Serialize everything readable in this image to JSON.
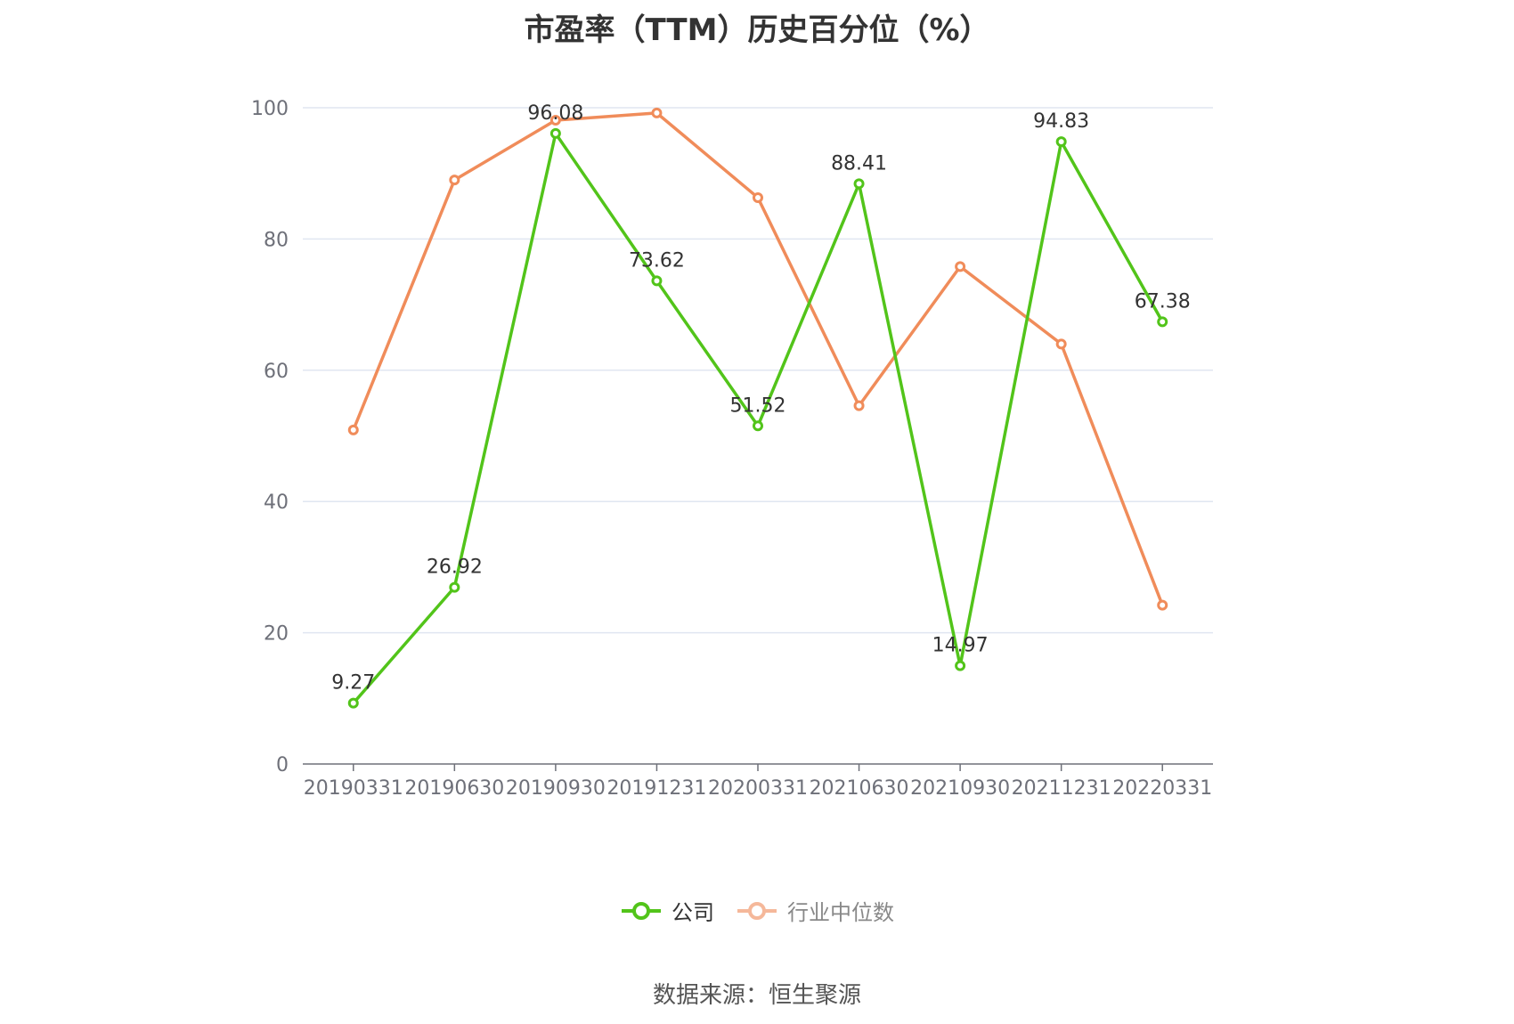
{
  "chart_data": {
    "type": "line",
    "title": "市盈率（TTM）历史百分位（%）",
    "categories": [
      "20190331",
      "20190630",
      "20190930",
      "20191231",
      "20200331",
      "20210630",
      "20210930",
      "20211231",
      "20220331"
    ],
    "ylim": [
      0,
      100
    ],
    "yticks": [
      0,
      20,
      40,
      60,
      80,
      100
    ],
    "grid": true,
    "legend_position": "bottom",
    "series": [
      {
        "name": "公司",
        "color": "#52c41a",
        "show_labels": true,
        "values": [
          9.27,
          26.92,
          96.08,
          73.62,
          51.52,
          88.41,
          14.97,
          94.83,
          67.38
        ]
      },
      {
        "name": "行业中位数",
        "color": "#f08c5a",
        "legend_color": "#f5b89a",
        "show_labels": false,
        "values": [
          50.9,
          89.0,
          98.1,
          99.2,
          86.3,
          54.6,
          75.8,
          64.0,
          24.2
        ]
      }
    ]
  },
  "source_text": "数据来源：恒生聚源"
}
